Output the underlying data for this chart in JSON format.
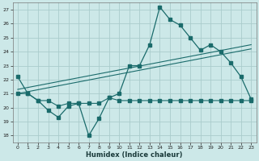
{
  "xlabel": "Humidex (Indice chaleur)",
  "bg_color": "#cce8e8",
  "grid_color": "#aacccc",
  "line_color": "#1a6b6b",
  "xlim": [
    -0.5,
    23.5
  ],
  "ylim": [
    17.5,
    27.5
  ],
  "yticks": [
    18,
    19,
    20,
    21,
    22,
    23,
    24,
    25,
    26,
    27
  ],
  "xticks": [
    0,
    1,
    2,
    3,
    4,
    5,
    6,
    7,
    8,
    9,
    10,
    11,
    12,
    13,
    14,
    15,
    16,
    17,
    18,
    19,
    20,
    21,
    22,
    23
  ],
  "series1_x": [
    0,
    1,
    2,
    3,
    4,
    5,
    6,
    7,
    8,
    9,
    10,
    11,
    12,
    13,
    14,
    15,
    16,
    17,
    18,
    19,
    20,
    21,
    22,
    23
  ],
  "series1_y": [
    22.2,
    21.0,
    20.5,
    19.8,
    19.3,
    20.1,
    20.3,
    18.0,
    19.2,
    20.7,
    21.0,
    23.0,
    23.0,
    24.5,
    27.2,
    26.3,
    25.9,
    25.0,
    24.1,
    24.5,
    24.0,
    23.2,
    22.2,
    20.6
  ],
  "series2_x": [
    0,
    1,
    2,
    3,
    4,
    5,
    6,
    7,
    8,
    9,
    10,
    11,
    12,
    13,
    14,
    15,
    16,
    17,
    18,
    19,
    20,
    21,
    22,
    23
  ],
  "series2_y": [
    21.0,
    21.0,
    20.5,
    20.5,
    20.1,
    20.3,
    20.3,
    20.3,
    20.3,
    20.7,
    20.5,
    20.5,
    20.5,
    20.5,
    20.5,
    20.5,
    20.5,
    20.5,
    20.5,
    20.5,
    20.5,
    20.5,
    20.5,
    20.5
  ],
  "series3_x": [
    0,
    23
  ],
  "series3_y": [
    21.0,
    24.2
  ],
  "series4_x": [
    0,
    23
  ],
  "series4_y": [
    21.3,
    24.5
  ]
}
